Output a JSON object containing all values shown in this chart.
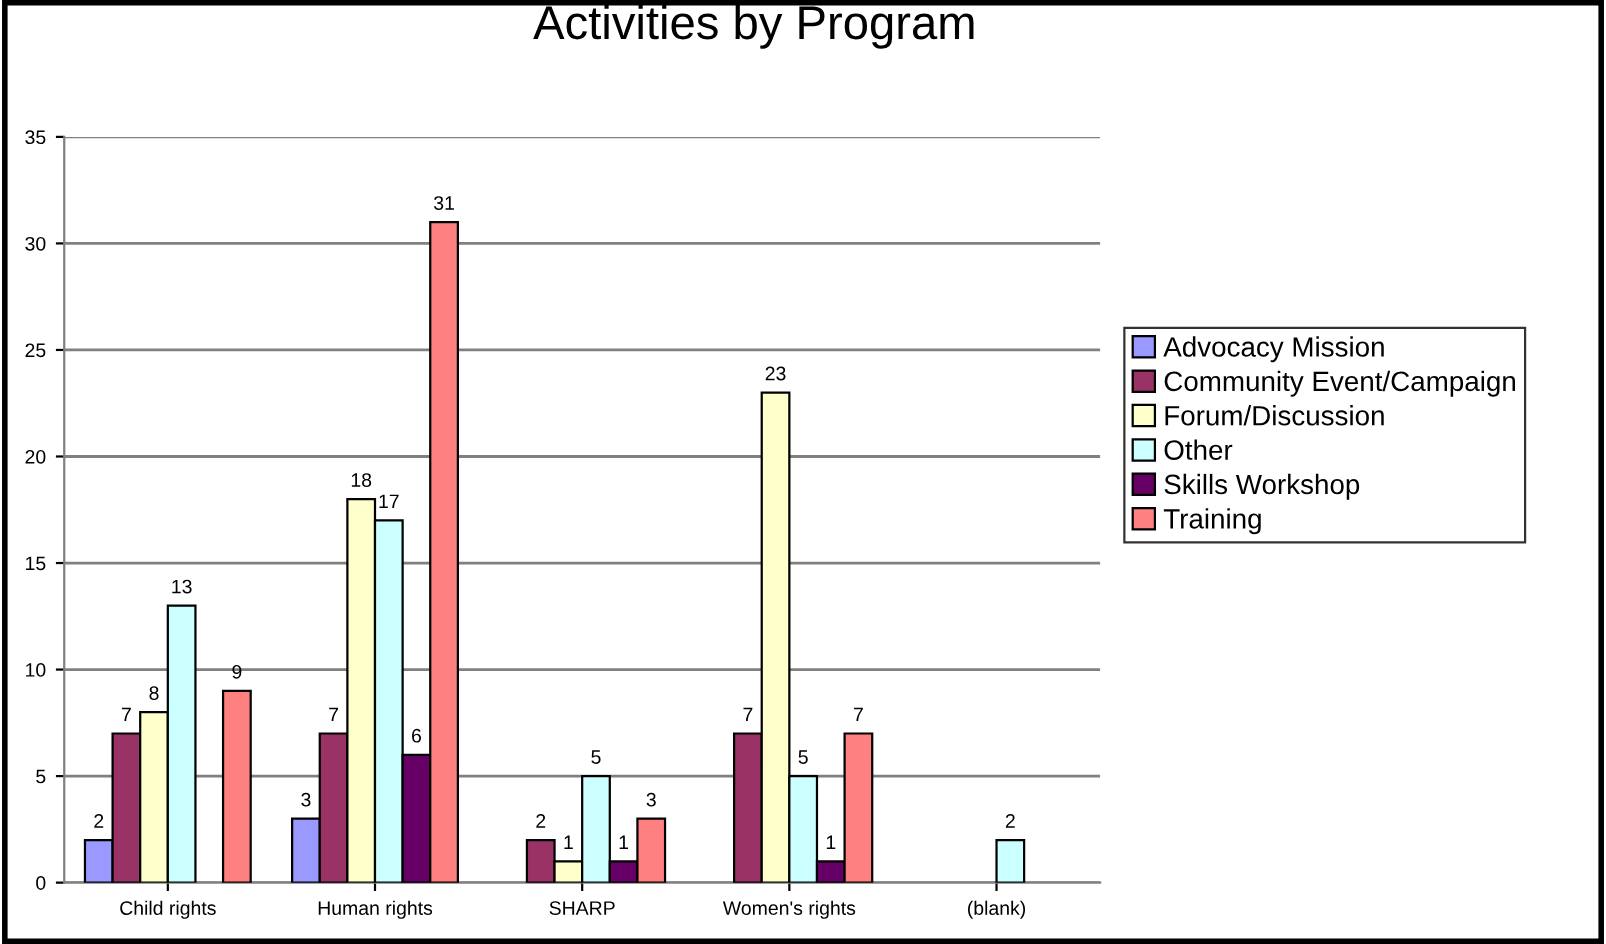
{
  "chart_data": {
    "type": "bar",
    "title": "Activities by Program",
    "categories": [
      "Child rights",
      "Human rights",
      "SHARP",
      "Women's rights",
      "(blank)"
    ],
    "series": [
      {
        "name": "Advocacy Mission",
        "color": "#9999ff",
        "values": [
          2,
          3,
          null,
          null,
          null
        ]
      },
      {
        "name": "Community Event/Campaign",
        "color": "#993366",
        "values": [
          7,
          7,
          2,
          7,
          null
        ]
      },
      {
        "name": "Forum/Discussion",
        "color": "#ffffcc",
        "values": [
          8,
          18,
          1,
          23,
          null
        ]
      },
      {
        "name": "Other",
        "color": "#ccffff",
        "values": [
          13,
          17,
          5,
          5,
          2
        ]
      },
      {
        "name": "Skills Workshop",
        "color": "#660066",
        "values": [
          null,
          6,
          1,
          1,
          null
        ]
      },
      {
        "name": "Training",
        "color": "#ff8080",
        "values": [
          9,
          31,
          3,
          7,
          null
        ]
      }
    ],
    "ylim": [
      0,
      35
    ],
    "yticks": [
      0,
      5,
      10,
      15,
      20,
      25,
      30,
      35
    ],
    "grid": "y",
    "legend": "right",
    "data_labels": true
  }
}
